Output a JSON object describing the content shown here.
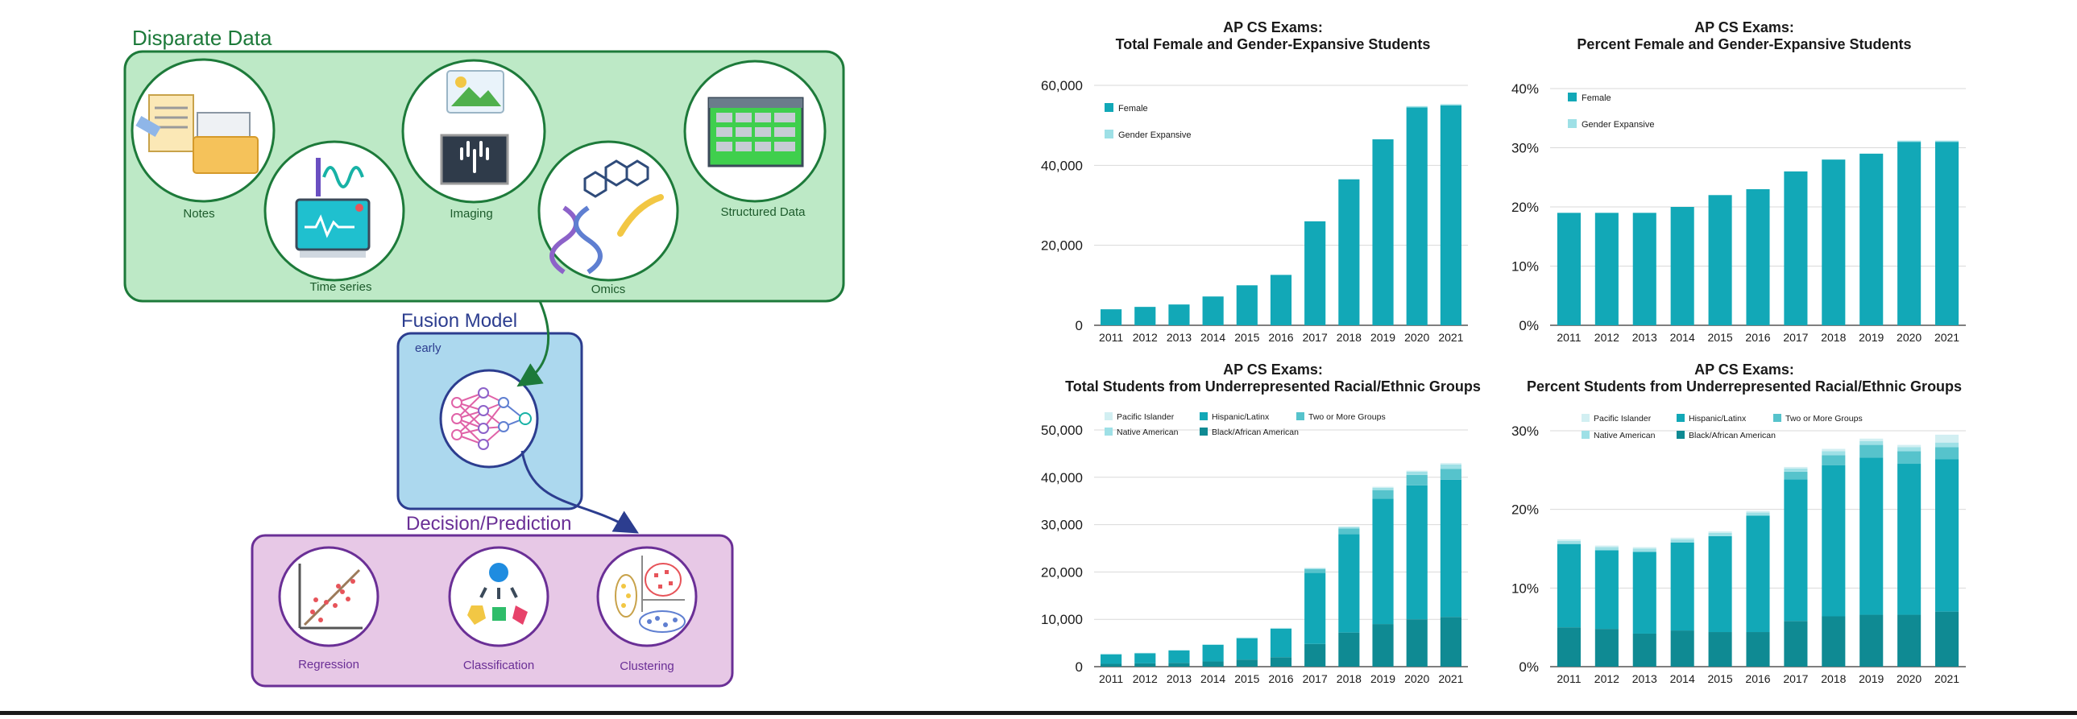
{
  "colors": {
    "teal": "#12a8b7",
    "teal_dark": "#0f8a93",
    "teal_light": "#9ee0e6",
    "teal_mid": "#56c3cc",
    "teal_pale": "#d2eff2",
    "green_box_fill": "#bde9c6",
    "green_box_stroke": "#1d7a3a",
    "blue_box_fill": "#acd8ee",
    "blue_box_stroke": "#2c3d8f",
    "purple_box_fill": "#e7c8e6",
    "purple_box_stroke": "#6a2f96"
  },
  "diagram": {
    "disparate_title": "Disparate Data",
    "items": {
      "notes": "Notes",
      "time_series": "Time series",
      "imaging": "Imaging",
      "omics": "Omics",
      "structured": "Structured Data"
    },
    "fusion_title": "Fusion Model",
    "fusion_sub": "early",
    "decision_title": "Decision/Prediction",
    "outputs": {
      "regression": "Regression",
      "classification": "Classification",
      "clustering": "Clustering"
    },
    "icons": [
      "notes-icon",
      "time-series-icon",
      "imaging-icon",
      "omics-icon",
      "structured-data-icon",
      "neural-network-icon",
      "regression-icon",
      "classification-icon",
      "clustering-icon"
    ]
  },
  "chart_data": [
    {
      "type": "bar",
      "title": "AP CS Exams:\nTotal Female and Gender-Expansive Students",
      "title_lines": [
        "AP CS Exams:",
        "Total Female and Gender-Expansive Students"
      ],
      "categories": [
        "2011",
        "2012",
        "2013",
        "2014",
        "2015",
        "2016",
        "2017",
        "2018",
        "2019",
        "2020",
        "2021"
      ],
      "yticks": [
        "60,000",
        "40,000",
        "20,000",
        "0"
      ],
      "ylim": [
        0,
        60000
      ],
      "legend": [
        "Female",
        "Gender Expansive"
      ],
      "legend_placement": "top-left",
      "series": [
        {
          "name": "Female",
          "values": [
            4000,
            4600,
            5200,
            7200,
            10000,
            12600,
            26000,
            36500,
            46500,
            54500,
            55000
          ]
        },
        {
          "name": "Gender Expansive",
          "values": [
            0,
            0,
            0,
            0,
            0,
            0,
            0,
            0,
            0,
            300,
            300
          ]
        }
      ]
    },
    {
      "type": "bar",
      "title": "AP CS Exams:\nPercent Female and Gender-Expansive Students",
      "title_lines": [
        "AP CS Exams:",
        "Percent Female and Gender-Expansive Students"
      ],
      "categories": [
        "2011",
        "2012",
        "2013",
        "2014",
        "2015",
        "2016",
        "2017",
        "2018",
        "2019",
        "2020",
        "2021"
      ],
      "yticks": [
        "40%",
        "30%",
        "20%",
        "10%",
        "0%"
      ],
      "ylim": [
        0,
        40
      ],
      "legend": [
        "Female",
        "Gender Expansive"
      ],
      "legend_placement": "top-left",
      "series": [
        {
          "name": "Female",
          "values": [
            19,
            19,
            19,
            20,
            22,
            23,
            26,
            28,
            29,
            31,
            31
          ]
        },
        {
          "name": "Gender Expansive",
          "values": [
            0,
            0,
            0,
            0,
            0,
            0,
            0,
            0,
            0,
            0.2,
            0.2
          ]
        }
      ]
    },
    {
      "type": "bar",
      "stacked": true,
      "title": "AP CS Exams:\nTotal Students from Underrepresented Racial/Ethnic Groups",
      "title_lines": [
        "AP CS Exams:",
        "Total Students from Underrepresented Racial/Ethnic Groups"
      ],
      "categories": [
        "2011",
        "2012",
        "2013",
        "2014",
        "2015",
        "2016",
        "2017",
        "2018",
        "2019",
        "2020",
        "2021"
      ],
      "yticks": [
        "50,000",
        "40,000",
        "30,000",
        "20,000",
        "10,000",
        "0"
      ],
      "ylim": [
        0,
        50000
      ],
      "legend": [
        "Pacific Islander",
        "Hispanic/Latinx",
        "Two or More Groups",
        "Native American",
        "Black/African American"
      ],
      "legend_placement": "top-left",
      "series": [
        {
          "name": "Black/African American",
          "values": [
            600,
            700,
            800,
            1100,
            1500,
            2000,
            4800,
            7200,
            9000,
            10000,
            10500
          ]
        },
        {
          "name": "Hispanic/Latinx",
          "values": [
            2000,
            2100,
            2600,
            3500,
            4500,
            6000,
            15000,
            20800,
            26500,
            28300,
            29000
          ]
        },
        {
          "name": "Two or More Groups",
          "values": [
            0,
            0,
            0,
            0,
            0,
            0,
            800,
            1200,
            1800,
            2200,
            2300
          ]
        },
        {
          "name": "Native American",
          "values": [
            100,
            100,
            100,
            100,
            150,
            150,
            200,
            300,
            500,
            700,
            900
          ]
        },
        {
          "name": "Pacific Islander",
          "values": [
            50,
            50,
            50,
            50,
            50,
            50,
            100,
            100,
            200,
            200,
            300
          ]
        }
      ]
    },
    {
      "type": "bar",
      "stacked": true,
      "title": "AP CS Exams:\nPercent Students from Underrepresented Racial/Ethnic Groups",
      "title_lines": [
        "AP CS Exams:",
        "Percent Students from Underrepresented Racial/Ethnic Groups"
      ],
      "categories": [
        "2011",
        "2012",
        "2013",
        "2014",
        "2015",
        "2016",
        "2017",
        "2018",
        "2019",
        "2020",
        "2021"
      ],
      "yticks": [
        "30%",
        "20%",
        "10%",
        "0%"
      ],
      "ylim": [
        0,
        30
      ],
      "legend": [
        "Pacific Islander",
        "Hispanic/Latinx",
        "Two or More Groups",
        "Native American",
        "Black/African American"
      ],
      "legend_placement": "top-left",
      "series": [
        {
          "name": "Black/African American",
          "values": [
            5,
            4.8,
            4.2,
            4.6,
            4.4,
            4.4,
            5.8,
            6.4,
            6.6,
            6.6,
            7
          ]
        },
        {
          "name": "Hispanic/Latinx",
          "values": [
            10.6,
            10,
            10.4,
            11.2,
            12.2,
            14.8,
            18,
            19.2,
            20,
            19.2,
            19.4
          ]
        },
        {
          "name": "Two or More Groups",
          "values": [
            0,
            0,
            0,
            0,
            0,
            0,
            1,
            1.3,
            1.6,
            1.6,
            1.5
          ]
        },
        {
          "name": "Native American",
          "values": [
            0.4,
            0.4,
            0.4,
            0.4,
            0.4,
            0.4,
            0.4,
            0.5,
            0.5,
            0.5,
            0.6
          ]
        },
        {
          "name": "Pacific Islander",
          "values": [
            0.2,
            0.2,
            0.2,
            0.2,
            0.2,
            0.2,
            0.2,
            0.3,
            0.3,
            0.3,
            1
          ]
        }
      ]
    }
  ]
}
